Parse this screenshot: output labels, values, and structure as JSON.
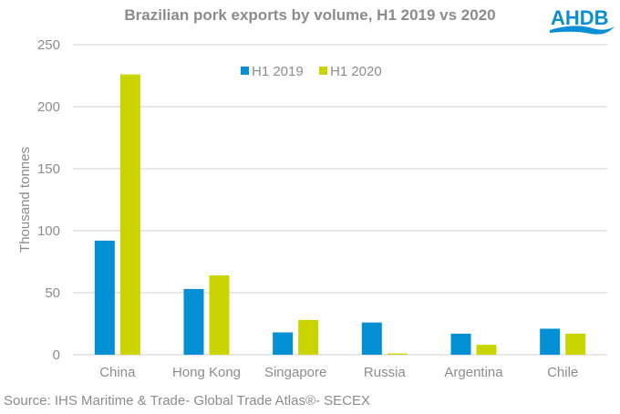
{
  "chart_data": {
    "type": "bar",
    "title": "Brazilian pork exports by volume, H1 2019 vs 2020",
    "xlabel": "",
    "ylabel": "Thousand tonnes",
    "ylim": [
      0,
      250
    ],
    "yticks": [
      0,
      50,
      100,
      150,
      200,
      250
    ],
    "grid": true,
    "legend_position": "top-center",
    "categories": [
      "China",
      "Hong Kong",
      "Singapore",
      "Russia",
      "Argentina",
      "Chile"
    ],
    "series": [
      {
        "name": "H1 2019",
        "color": "#0490d4",
        "values": [
          92,
          53,
          18,
          26,
          17,
          21
        ]
      },
      {
        "name": "H1 2020",
        "color": "#c9d400",
        "values": [
          226,
          64,
          28,
          1,
          8,
          17
        ]
      }
    ]
  },
  "logo": {
    "text": "AHDB",
    "color": "#0a8fd4"
  },
  "source": "Source: IHS Maritime & Trade- Global Trade Atlas®- SECEX"
}
